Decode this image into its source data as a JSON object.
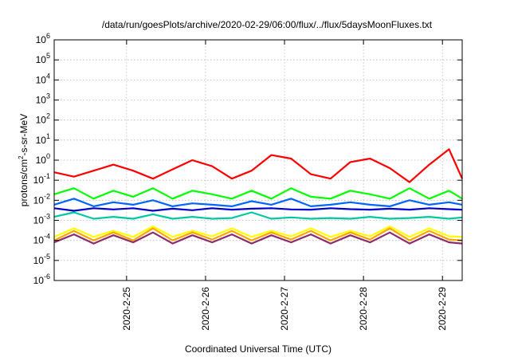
{
  "chart_data": {
    "type": "line",
    "title": "/data/run/goesPlots/archive/2020-02-29/06:00/flux/../flux/5daysMoonFluxes.txt",
    "xlabel": "Coordinated Universal Time (UTC)",
    "ylabel": "protons/cm^2-s-sr-MeV",
    "ylabel_parts": {
      "base": "protons/cm",
      "sup": "2",
      "rest": "-s-sr-MeV"
    },
    "y_scale": "log",
    "ylim": [
      1e-06,
      1000000.0
    ],
    "y_ticks": [
      {
        "base": "10",
        "exp": "6",
        "value": 1000000.0
      },
      {
        "base": "10",
        "exp": "5",
        "value": 100000.0
      },
      {
        "base": "10",
        "exp": "4",
        "value": 10000.0
      },
      {
        "base": "10",
        "exp": "3",
        "value": 1000.0
      },
      {
        "base": "10",
        "exp": "2",
        "value": 100.0
      },
      {
        "base": "10",
        "exp": "1",
        "value": 10.0
      },
      {
        "base": "10",
        "exp": "0",
        "value": 1.0
      },
      {
        "base": "10",
        "exp": "-1",
        "value": 0.1
      },
      {
        "base": "10",
        "exp": "-2",
        "value": 0.01
      },
      {
        "base": "10",
        "exp": "-3",
        "value": 0.001
      },
      {
        "base": "10",
        "exp": "-4",
        "value": 0.0001
      },
      {
        "base": "10",
        "exp": "-5",
        "value": 1e-05
      },
      {
        "base": "10",
        "exp": "-6",
        "value": 1e-06
      }
    ],
    "x_range": [
      "2020-02-24T02:00",
      "2020-02-29T06:00"
    ],
    "x_ticks": [
      {
        "label": "2020-2-25",
        "value": "2020-02-25T00:00"
      },
      {
        "label": "2020-2-26",
        "value": "2020-02-26T00:00"
      },
      {
        "label": "2020-2-27",
        "value": "2020-02-27T00:00"
      },
      {
        "label": "2020-2-28",
        "value": "2020-02-28T00:00"
      },
      {
        "label": "2020-2-29",
        "value": "2020-02-29T00:00"
      }
    ],
    "grid": true,
    "legend": "none",
    "series": [
      {
        "color": "#ff0000",
        "x": [
          "2020-02-24T02:00",
          "2020-02-24T08:00",
          "2020-02-24T14:00",
          "2020-02-24T20:00",
          "2020-02-25T02:00",
          "2020-02-25T08:00",
          "2020-02-25T14:00",
          "2020-02-25T20:00",
          "2020-02-26T02:00",
          "2020-02-26T08:00",
          "2020-02-26T14:00",
          "2020-02-26T20:00",
          "2020-02-27T02:00",
          "2020-02-27T08:00",
          "2020-02-27T14:00",
          "2020-02-27T20:00",
          "2020-02-28T02:00",
          "2020-02-28T08:00",
          "2020-02-28T14:00",
          "2020-02-28T20:00",
          "2020-02-29T02:00",
          "2020-02-29T06:00"
        ],
        "values": [
          0.25,
          0.15,
          0.3,
          0.6,
          0.3,
          0.12,
          0.35,
          1.0,
          0.5,
          0.12,
          0.3,
          1.8,
          1.2,
          0.2,
          0.12,
          0.8,
          1.2,
          0.4,
          0.08,
          0.6,
          3.5,
          0.12
        ]
      },
      {
        "color": "#00ff00",
        "x": [
          "2020-02-24T02:00",
          "2020-02-24T08:00",
          "2020-02-24T14:00",
          "2020-02-24T20:00",
          "2020-02-25T02:00",
          "2020-02-25T08:00",
          "2020-02-25T14:00",
          "2020-02-25T20:00",
          "2020-02-26T02:00",
          "2020-02-26T08:00",
          "2020-02-26T14:00",
          "2020-02-26T20:00",
          "2020-02-27T02:00",
          "2020-02-27T08:00",
          "2020-02-27T14:00",
          "2020-02-27T20:00",
          "2020-02-28T02:00",
          "2020-02-28T08:00",
          "2020-02-28T14:00",
          "2020-02-28T20:00",
          "2020-02-29T02:00",
          "2020-02-29T06:00"
        ],
        "values": [
          0.02,
          0.04,
          0.012,
          0.03,
          0.015,
          0.04,
          0.012,
          0.03,
          0.02,
          0.012,
          0.03,
          0.012,
          0.04,
          0.015,
          0.012,
          0.03,
          0.02,
          0.012,
          0.04,
          0.012,
          0.03,
          0.012
        ]
      },
      {
        "color": "#0066ff",
        "x": [
          "2020-02-24T02:00",
          "2020-02-24T08:00",
          "2020-02-24T14:00",
          "2020-02-24T20:00",
          "2020-02-25T02:00",
          "2020-02-25T08:00",
          "2020-02-25T14:00",
          "2020-02-25T20:00",
          "2020-02-26T02:00",
          "2020-02-26T08:00",
          "2020-02-26T14:00",
          "2020-02-26T20:00",
          "2020-02-27T02:00",
          "2020-02-27T08:00",
          "2020-02-27T14:00",
          "2020-02-27T20:00",
          "2020-02-28T02:00",
          "2020-02-28T08:00",
          "2020-02-28T14:00",
          "2020-02-28T20:00",
          "2020-02-29T02:00",
          "2020-02-29T06:00"
        ],
        "values": [
          0.006,
          0.012,
          0.005,
          0.008,
          0.006,
          0.01,
          0.005,
          0.007,
          0.006,
          0.005,
          0.009,
          0.006,
          0.012,
          0.005,
          0.006,
          0.008,
          0.006,
          0.005,
          0.01,
          0.006,
          0.008,
          0.006
        ]
      },
      {
        "color": "#0000cc",
        "x": [
          "2020-02-24T02:00",
          "2020-02-24T08:00",
          "2020-02-24T14:00",
          "2020-02-24T20:00",
          "2020-02-25T02:00",
          "2020-02-25T08:00",
          "2020-02-25T14:00",
          "2020-02-25T20:00",
          "2020-02-26T02:00",
          "2020-02-26T08:00",
          "2020-02-26T14:00",
          "2020-02-26T20:00",
          "2020-02-27T02:00",
          "2020-02-27T08:00",
          "2020-02-27T14:00",
          "2020-02-27T20:00",
          "2020-02-28T02:00",
          "2020-02-28T08:00",
          "2020-02-28T14:00",
          "2020-02-28T20:00",
          "2020-02-29T02:00",
          "2020-02-29T06:00"
        ],
        "values": [
          0.004,
          0.003,
          0.004,
          0.0035,
          0.004,
          0.003,
          0.0038,
          0.0032,
          0.004,
          0.0034,
          0.0038,
          0.004,
          0.0035,
          0.0034,
          0.004,
          0.0036,
          0.0034,
          0.0038,
          0.0034,
          0.004,
          0.0036,
          0.0034
        ]
      },
      {
        "color": "#00c8a0",
        "x": [
          "2020-02-24T02:00",
          "2020-02-24T08:00",
          "2020-02-24T14:00",
          "2020-02-24T20:00",
          "2020-02-25T02:00",
          "2020-02-25T08:00",
          "2020-02-25T14:00",
          "2020-02-25T20:00",
          "2020-02-26T02:00",
          "2020-02-26T08:00",
          "2020-02-26T14:00",
          "2020-02-26T20:00",
          "2020-02-27T02:00",
          "2020-02-27T08:00",
          "2020-02-27T14:00",
          "2020-02-27T20:00",
          "2020-02-28T02:00",
          "2020-02-28T08:00",
          "2020-02-28T14:00",
          "2020-02-28T20:00",
          "2020-02-29T02:00",
          "2020-02-29T06:00"
        ],
        "values": [
          0.0015,
          0.0025,
          0.0012,
          0.0015,
          0.0012,
          0.002,
          0.0012,
          0.0015,
          0.0012,
          0.0013,
          0.0025,
          0.0012,
          0.0014,
          0.0012,
          0.0013,
          0.0012,
          0.0015,
          0.0012,
          0.0013,
          0.0015,
          0.0012,
          0.0014
        ]
      },
      {
        "color": "#ffff00",
        "x": [
          "2020-02-24T02:00",
          "2020-02-24T08:00",
          "2020-02-24T14:00",
          "2020-02-24T20:00",
          "2020-02-25T02:00",
          "2020-02-25T08:00",
          "2020-02-25T14:00",
          "2020-02-25T20:00",
          "2020-02-26T02:00",
          "2020-02-26T08:00",
          "2020-02-26T14:00",
          "2020-02-26T20:00",
          "2020-02-27T02:00",
          "2020-02-27T08:00",
          "2020-02-27T14:00",
          "2020-02-27T20:00",
          "2020-02-28T02:00",
          "2020-02-28T08:00",
          "2020-02-28T14:00",
          "2020-02-28T20:00",
          "2020-02-29T02:00",
          "2020-02-29T06:00"
        ],
        "values": [
          0.00015,
          0.0004,
          0.00015,
          0.0003,
          0.00015,
          0.0005,
          0.00015,
          0.0003,
          0.00016,
          0.0004,
          0.00015,
          0.0003,
          0.00016,
          0.0004,
          0.00015,
          0.0003,
          0.00016,
          0.0005,
          0.00015,
          0.0004,
          0.00016,
          0.00015
        ]
      },
      {
        "color": "#ffa500",
        "x": [
          "2020-02-24T02:00",
          "2020-02-24T08:00",
          "2020-02-24T14:00",
          "2020-02-24T20:00",
          "2020-02-25T02:00",
          "2020-02-25T08:00",
          "2020-02-25T14:00",
          "2020-02-25T20:00",
          "2020-02-26T02:00",
          "2020-02-26T08:00",
          "2020-02-26T14:00",
          "2020-02-26T20:00",
          "2020-02-27T02:00",
          "2020-02-27T08:00",
          "2020-02-27T14:00",
          "2020-02-27T20:00",
          "2020-02-28T02:00",
          "2020-02-28T08:00",
          "2020-02-28T14:00",
          "2020-02-28T20:00",
          "2020-02-29T02:00",
          "2020-02-29T06:00"
        ],
        "values": [
          0.0001,
          0.0003,
          0.0001,
          0.00025,
          0.0001,
          0.0004,
          0.0001,
          0.00025,
          0.00011,
          0.0003,
          0.0001,
          0.00025,
          0.00011,
          0.0003,
          0.0001,
          0.00025,
          0.00011,
          0.0004,
          0.0001,
          0.0003,
          0.00011,
          0.0001
        ]
      },
      {
        "color": "#8b2c6e",
        "x": [
          "2020-02-24T02:00",
          "2020-02-24T08:00",
          "2020-02-24T14:00",
          "2020-02-24T20:00",
          "2020-02-25T02:00",
          "2020-02-25T08:00",
          "2020-02-25T14:00",
          "2020-02-25T20:00",
          "2020-02-26T02:00",
          "2020-02-26T08:00",
          "2020-02-26T14:00",
          "2020-02-26T20:00",
          "2020-02-27T02:00",
          "2020-02-27T08:00",
          "2020-02-27T14:00",
          "2020-02-27T20:00",
          "2020-02-28T02:00",
          "2020-02-28T08:00",
          "2020-02-28T14:00",
          "2020-02-28T20:00",
          "2020-02-29T02:00",
          "2020-02-29T06:00"
        ],
        "values": [
          8e-05,
          0.0002,
          7e-05,
          0.00018,
          8e-05,
          0.00025,
          7e-05,
          0.00018,
          8e-05,
          0.0002,
          7e-05,
          0.00018,
          8e-05,
          0.0002,
          7e-05,
          0.00018,
          8e-05,
          0.00025,
          7e-05,
          0.0002,
          8e-05,
          7e-05
        ]
      }
    ]
  }
}
